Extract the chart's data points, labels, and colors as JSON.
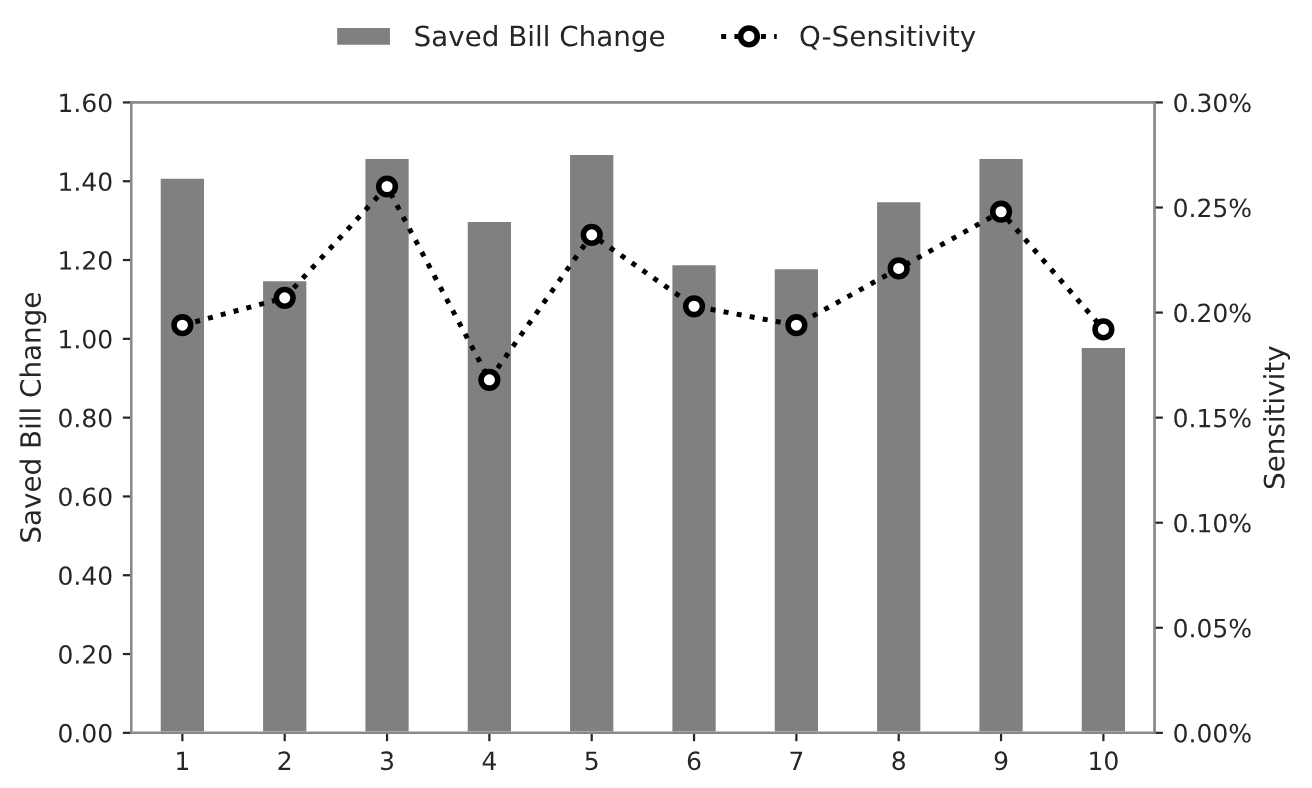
{
  "chart_data": {
    "type": "bar",
    "xlabel": null,
    "ylabel": "Saved Bill Change",
    "y2label": "Sensitivity",
    "categories": [
      "1",
      "2",
      "3",
      "4",
      "5",
      "6",
      "7",
      "8",
      "9",
      "10"
    ],
    "series": [
      {
        "name": "Saved Bill Change",
        "color": "#808080",
        "values": [
          1.41,
          1.15,
          1.46,
          1.3,
          1.47,
          1.19,
          1.18,
          1.35,
          1.46,
          0.98
        ]
      },
      {
        "name": "Q-Sensitivity",
        "type": "line",
        "axis": "y2",
        "color": "#000000",
        "marker": "circle",
        "line_style": "dotted",
        "values": [
          0.194,
          0.207,
          0.26,
          0.168,
          0.237,
          0.203,
          0.194,
          0.221,
          0.248,
          0.192
        ]
      }
    ],
    "ylim": [
      0,
      1.6
    ],
    "yticks": [
      {
        "value": 0,
        "label": "0.00"
      },
      {
        "value": 0.2,
        "label": "0.20"
      },
      {
        "value": 0.4,
        "label": "0.40"
      },
      {
        "value": 0.6,
        "label": "0.60"
      },
      {
        "value": 0.8,
        "label": "0.80"
      },
      {
        "value": 1.0,
        "label": "1.00"
      },
      {
        "value": 1.2,
        "label": "1.20"
      },
      {
        "value": 1.4,
        "label": "1.40"
      },
      {
        "value": 1.6,
        "label": "1.60"
      }
    ],
    "y2lim": [
      0,
      0.3
    ],
    "y2ticks": [
      {
        "value": 0,
        "label": "0.00%"
      },
      {
        "value": 0.05,
        "label": "0.05%"
      },
      {
        "value": 0.1,
        "label": "0.10%"
      },
      {
        "value": 0.15,
        "label": "0.15%"
      },
      {
        "value": 0.2,
        "label": "0.20%"
      },
      {
        "value": 0.25,
        "label": "0.25%"
      },
      {
        "value": 0.3,
        "label": "0.30%"
      }
    ],
    "legend": "top",
    "grid": false
  }
}
